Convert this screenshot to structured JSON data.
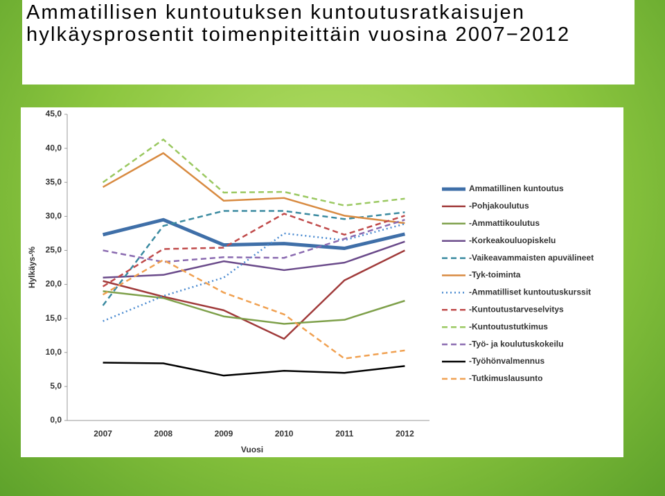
{
  "chart_data": {
    "type": "line",
    "title": "Ammatillisen kuntoutuksen kuntoutusratkaisujen hylkäysprosentit toimenpiteittäin vuosina 2007−2012",
    "x_label": "Vuosi",
    "y_label": "Hylkäys-%",
    "categories": [
      "2007",
      "2008",
      "2009",
      "2010",
      "2011",
      "2012"
    ],
    "ylim": [
      0,
      45
    ],
    "yticks": [
      {
        "value": 0,
        "label": "0,0"
      },
      {
        "value": 5,
        "label": "5,0"
      },
      {
        "value": 10,
        "label": "10,0"
      },
      {
        "value": 15,
        "label": "15,0"
      },
      {
        "value": 20,
        "label": "20,0"
      },
      {
        "value": 25,
        "label": "25,0"
      },
      {
        "value": 30,
        "label": "30,0"
      },
      {
        "value": 35,
        "label": "35,0"
      },
      {
        "value": 40,
        "label": "40,0"
      },
      {
        "value": 45,
        "label": "45,0"
      }
    ],
    "grid": false,
    "legend": "right",
    "series": [
      {
        "name": "Ammatillinen kuntoutus",
        "color": "#3f6fa8",
        "style": "solid",
        "line_width": 5,
        "values": [
          27.3,
          29.5,
          25.8,
          26.0,
          25.3,
          27.4
        ]
      },
      {
        "name": "-Pohjakoulutus",
        "color": "#a03a3a",
        "style": "solid",
        "line_width": 2.5,
        "values": [
          20.5,
          18.2,
          16.2,
          12.0,
          20.6,
          25.0
        ]
      },
      {
        "name": "-Ammattikoulutus",
        "color": "#7ea04a",
        "style": "solid",
        "line_width": 2.5,
        "values": [
          19.0,
          18.0,
          15.3,
          14.2,
          14.8,
          17.6
        ]
      },
      {
        "name": "-Korkeakouluopiskelu",
        "color": "#6a4a8a",
        "style": "solid",
        "line_width": 2.5,
        "values": [
          21.0,
          21.4,
          23.4,
          22.1,
          23.2,
          26.3
        ]
      },
      {
        "name": "-Vaikeavammaisten apuvälineet",
        "color": "#3a8aa0",
        "style": "dashed",
        "line_width": 2.5,
        "values": [
          16.9,
          28.6,
          30.8,
          30.8,
          29.6,
          30.6
        ]
      },
      {
        "name": "-Tyk-toiminta",
        "color": "#d88a40",
        "style": "solid",
        "line_width": 2.5,
        "values": [
          34.3,
          39.3,
          32.3,
          32.7,
          30.1,
          29.0
        ]
      },
      {
        "name": "-Ammatilliset kuntoutuskurssit",
        "color": "#4a8ad0",
        "style": "dotted",
        "line_width": 2.5,
        "values": [
          14.6,
          18.3,
          21.0,
          27.5,
          26.5,
          28.9
        ]
      },
      {
        "name": "-Kuntoutustarveselvitys",
        "color": "#c04a4a",
        "style": "dashed",
        "line_width": 2.5,
        "values": [
          19.7,
          25.2,
          25.4,
          30.4,
          27.3,
          30.1
        ]
      },
      {
        "name": "-Kuntoutustutkimus",
        "color": "#9ac860",
        "style": "dashed",
        "line_width": 2.5,
        "values": [
          35.0,
          41.3,
          33.5,
          33.6,
          31.6,
          32.6
        ]
      },
      {
        "name": "-Työ- ja koulutuskokeilu",
        "color": "#8a6ab0",
        "style": "dashed",
        "line_width": 2.5,
        "values": [
          25.0,
          23.3,
          24.0,
          23.9,
          26.7,
          29.5
        ]
      },
      {
        "name": "-Työhönvalmennus",
        "color": "#000000",
        "style": "solid",
        "line_width": 2.5,
        "values": [
          8.5,
          8.4,
          6.6,
          7.3,
          7.0,
          8.0
        ]
      },
      {
        "name": "-Tutkimuslausunto",
        "color": "#f0a050",
        "style": "dashed",
        "line_width": 2.5,
        "values": [
          18.5,
          23.6,
          18.8,
          15.6,
          9.1,
          10.3
        ]
      }
    ]
  }
}
